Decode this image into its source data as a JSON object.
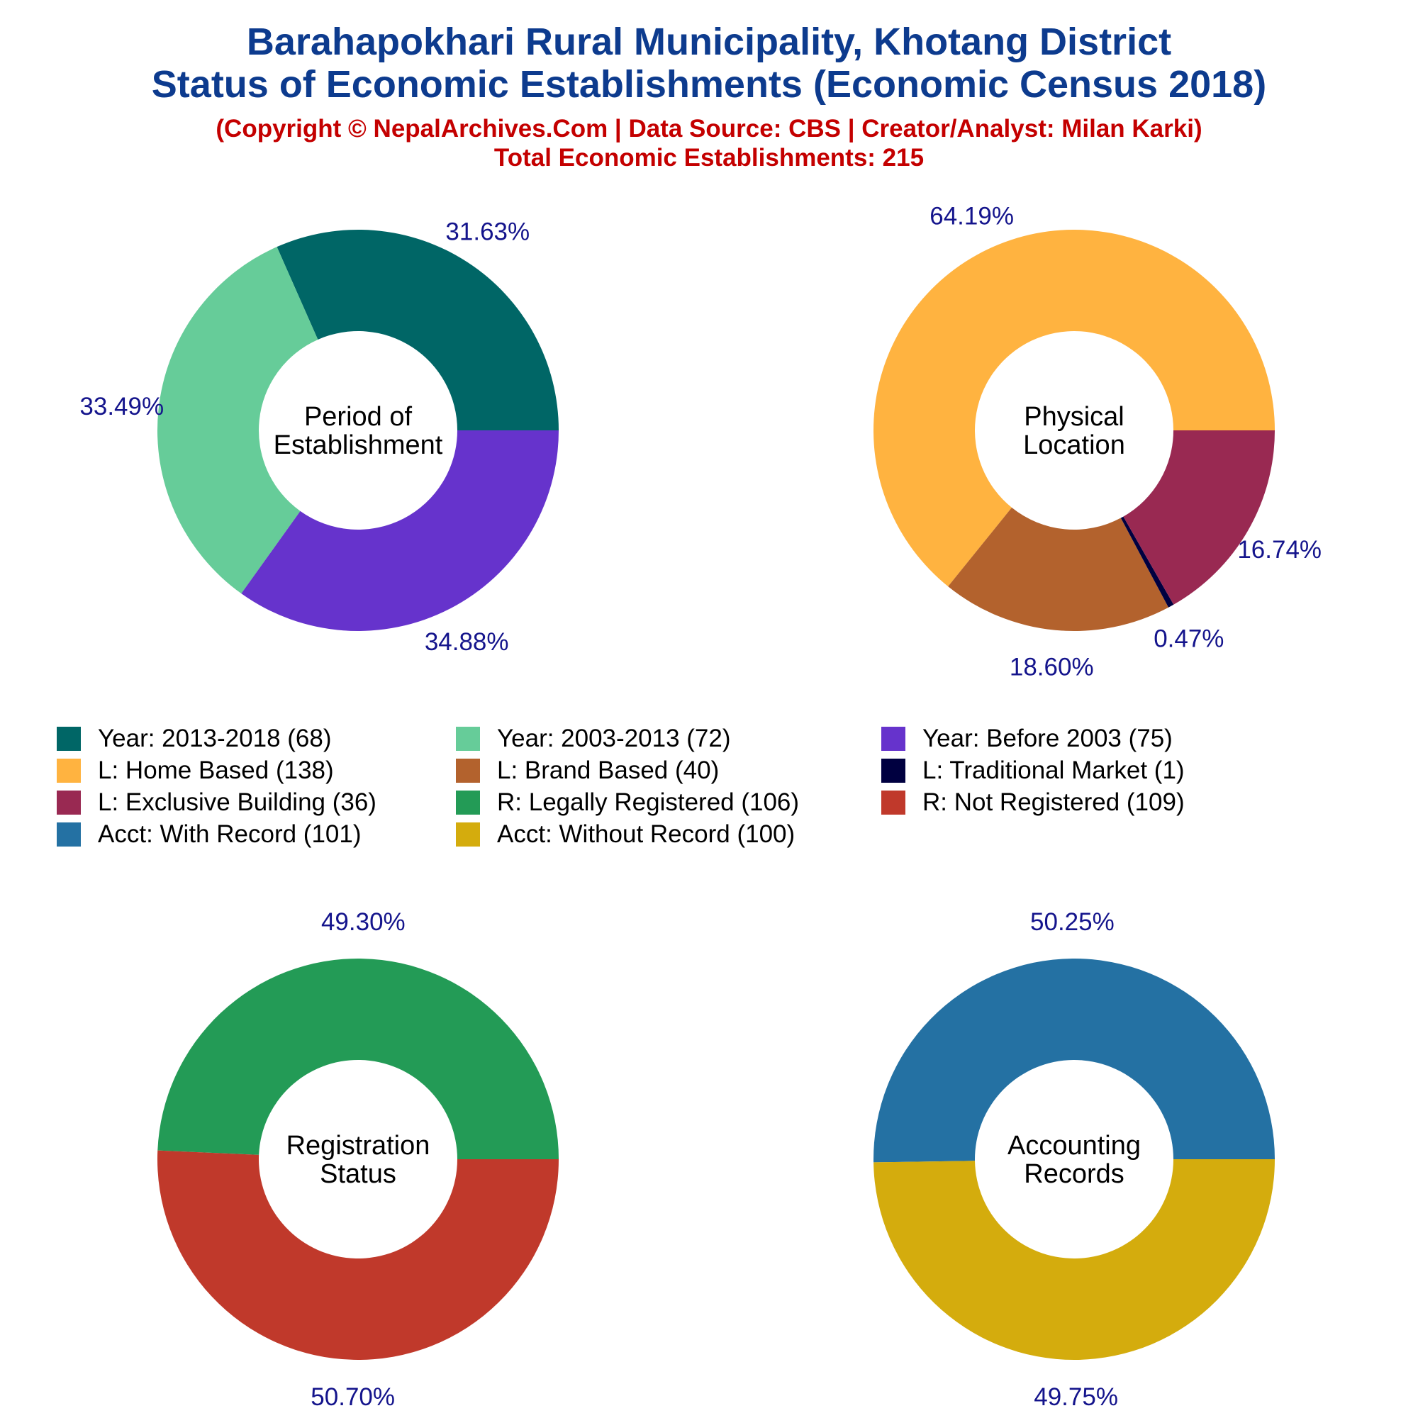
{
  "header": {
    "title_line1": "Barahapokhari Rural Municipality, Khotang District",
    "title_line2": "Status of Economic Establishments (Economic Census 2018)",
    "credit": "(Copyright © NepalArchives.Com | Data Source: CBS | Creator/Analyst: Milan Karki)",
    "total": "Total Economic Establishments: 215"
  },
  "chart_data": [
    {
      "type": "pie",
      "center_label": [
        "Period of",
        "Establishment"
      ],
      "slices": [
        {
          "label": "Year: 2013-2018",
          "value": 68,
          "percent": "31.63%",
          "color": "#006666"
        },
        {
          "label": "Year: 2003-2013",
          "value": 72,
          "percent": "33.49%",
          "color": "#66cc99"
        },
        {
          "label": "Year: Before 2003",
          "value": 75,
          "percent": "34.88%",
          "color": "#6633cc"
        }
      ]
    },
    {
      "type": "pie",
      "center_label": [
        "Physical",
        "Location"
      ],
      "slices": [
        {
          "label": "L: Home Based",
          "value": 138,
          "percent": "64.19%",
          "color": "#ffb340"
        },
        {
          "label": "L: Brand Based",
          "value": 40,
          "percent": "18.60%",
          "color": "#b3622d"
        },
        {
          "label": "L: Traditional Market",
          "value": 1,
          "percent": "0.47%",
          "color": "#000040"
        },
        {
          "label": "L: Exclusive Building",
          "value": 36,
          "percent": "16.74%",
          "color": "#992952"
        }
      ]
    },
    {
      "type": "pie",
      "center_label": [
        "Registration",
        "Status"
      ],
      "slices": [
        {
          "label": "R: Legally Registered",
          "value": 106,
          "percent": "49.30%",
          "color": "#239b56"
        },
        {
          "label": "R: Not Registered",
          "value": 109,
          "percent": "50.70%",
          "color": "#c0392b"
        }
      ]
    },
    {
      "type": "pie",
      "center_label": [
        "Accounting",
        "Records"
      ],
      "slices": [
        {
          "label": "Acct: With Record",
          "value": 101,
          "percent": "50.25%",
          "color": "#2471a3"
        },
        {
          "label": "Acct: Without Record",
          "value": 100,
          "percent": "49.75%",
          "color": "#d4ac0d"
        }
      ]
    }
  ],
  "legend": [
    {
      "label": "Year: 2013-2018 (68)",
      "color": "#006666"
    },
    {
      "label": "Year: 2003-2013 (72)",
      "color": "#66cc99"
    },
    {
      "label": "Year: Before 2003 (75)",
      "color": "#6633cc"
    },
    {
      "label": "L: Home Based (138)",
      "color": "#ffb340"
    },
    {
      "label": "L: Brand Based (40)",
      "color": "#b3622d"
    },
    {
      "label": "L: Traditional Market (1)",
      "color": "#000040"
    },
    {
      "label": "L: Exclusive Building (36)",
      "color": "#992952"
    },
    {
      "label": "R: Legally Registered (106)",
      "color": "#239b56"
    },
    {
      "label": "R: Not Registered (109)",
      "color": "#c0392b"
    },
    {
      "label": "Acct: With Record (101)",
      "color": "#2471a3"
    },
    {
      "label": "Acct: Without Record (100)",
      "color": "#d4ac0d"
    }
  ]
}
